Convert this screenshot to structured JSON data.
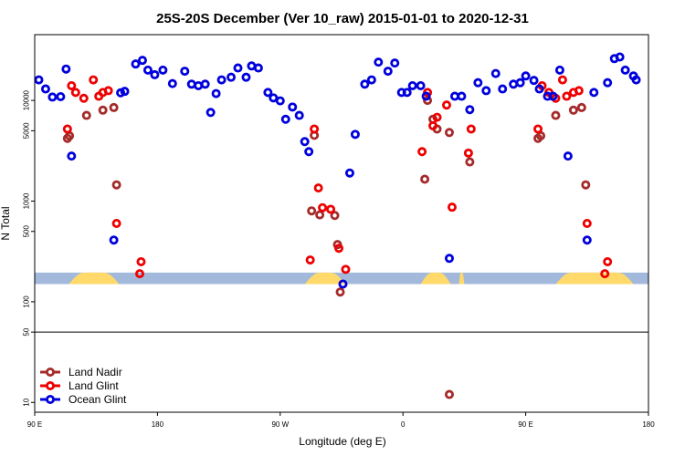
{
  "chart_data": {
    "type": "scatter",
    "title": "25S-20S December (Ver 10_raw)   2015-01-01 to 2020-12-31",
    "xlabel": "Longitude (deg E)",
    "ylabel": "N Total",
    "y_scale": "log",
    "xlim": [
      90,
      540
    ],
    "ylim": [
      8,
      45000
    ],
    "x_ticks": [
      {
        "value": 90,
        "label": "90 E"
      },
      {
        "value": 180,
        "label": "180"
      },
      {
        "value": 270,
        "label": "90 W"
      },
      {
        "value": 360,
        "label": "0"
      },
      {
        "value": 450,
        "label": "90 E"
      },
      {
        "value": 540,
        "label": "180"
      }
    ],
    "y_ticks": [
      {
        "value": 10,
        "label": "10"
      },
      {
        "value": 50,
        "label": "50"
      },
      {
        "value": 100,
        "label": "100"
      },
      {
        "value": 500,
        "label": "500"
      },
      {
        "value": 1000,
        "label": "1000"
      },
      {
        "value": 5000,
        "label": "5000"
      },
      {
        "value": 10000,
        "label": "10000"
      }
    ],
    "reference_line_y": 50,
    "land_band": {
      "y_range": [
        150,
        195
      ],
      "ocean_color": "#a3b9db",
      "land_color": "#ffd96a",
      "land_segments": [
        [
          115,
          152
        ],
        [
          288,
          318
        ],
        [
          373,
          395
        ],
        [
          401,
          405
        ],
        [
          472,
          529
        ]
      ]
    },
    "legend": {
      "position": "bottom-left"
    },
    "series": [
      {
        "name": "Land Nadir",
        "color": "#a52a2a",
        "points": [
          [
            114,
            4200
          ],
          [
            115.5,
            4450
          ],
          [
            128,
            7100
          ],
          [
            140,
            8000
          ],
          [
            148,
            8500
          ],
          [
            150,
            1450
          ],
          [
            293,
            800
          ],
          [
            295,
            4500
          ],
          [
            299,
            730
          ],
          [
            310,
            720
          ],
          [
            312,
            370
          ],
          [
            314,
            125
          ],
          [
            376,
            1650
          ],
          [
            378,
            10000
          ],
          [
            382,
            6500
          ],
          [
            385,
            5200
          ],
          [
            394,
            4800
          ],
          [
            394,
            12
          ],
          [
            409,
            2450
          ],
          [
            459,
            4200
          ],
          [
            461,
            4450
          ],
          [
            472,
            7100
          ],
          [
            485,
            8000
          ],
          [
            491,
            8500
          ],
          [
            494,
            1450
          ]
        ]
      },
      {
        "name": "Land Glint",
        "color": "#ee0000",
        "points": [
          [
            114,
            5200
          ],
          [
            117,
            14000
          ],
          [
            120,
            12000
          ],
          [
            126,
            10500
          ],
          [
            133,
            16000
          ],
          [
            137,
            11000
          ],
          [
            140,
            12000
          ],
          [
            144,
            12500
          ],
          [
            150,
            600
          ],
          [
            167,
            190
          ],
          [
            168,
            250
          ],
          [
            292,
            260
          ],
          [
            295,
            5200
          ],
          [
            298,
            1350
          ],
          [
            301,
            860
          ],
          [
            307,
            830
          ],
          [
            313,
            340
          ],
          [
            318,
            210
          ],
          [
            374,
            3100
          ],
          [
            378,
            12000
          ],
          [
            382,
            5600
          ],
          [
            385,
            6800
          ],
          [
            392,
            9000
          ],
          [
            396,
            870
          ],
          [
            408,
            3000
          ],
          [
            410,
            5200
          ],
          [
            459,
            5200
          ],
          [
            462,
            14000
          ],
          [
            467,
            12000
          ],
          [
            472,
            10500
          ],
          [
            477,
            16000
          ],
          [
            480,
            11000
          ],
          [
            485,
            12000
          ],
          [
            489,
            12500
          ],
          [
            495,
            600
          ],
          [
            508,
            190
          ],
          [
            510,
            250
          ]
        ]
      },
      {
        "name": "Ocean Glint",
        "color": "#0000dd",
        "points": [
          [
            93,
            16000
          ],
          [
            98,
            13000
          ],
          [
            103,
            10800
          ],
          [
            109,
            10900
          ],
          [
            113,
            20500
          ],
          [
            117,
            2800
          ],
          [
            148,
            410
          ],
          [
            153,
            11900
          ],
          [
            156,
            12300
          ],
          [
            164,
            23000
          ],
          [
            169,
            25000
          ],
          [
            173,
            20000
          ],
          [
            178,
            18000
          ],
          [
            184,
            20000
          ],
          [
            191,
            14700
          ],
          [
            200,
            19500
          ],
          [
            205,
            14500
          ],
          [
            210,
            14000
          ],
          [
            215,
            14500
          ],
          [
            219,
            7600
          ],
          [
            223,
            11700
          ],
          [
            227,
            16000
          ],
          [
            234,
            17000
          ],
          [
            239,
            21000
          ],
          [
            245,
            17000
          ],
          [
            249,
            22000
          ],
          [
            254,
            21000
          ],
          [
            261,
            12000
          ],
          [
            265,
            10600
          ],
          [
            270,
            9900
          ],
          [
            274,
            6500
          ],
          [
            279,
            8600
          ],
          [
            284,
            7100
          ],
          [
            288,
            3900
          ],
          [
            291,
            3100
          ],
          [
            316,
            150
          ],
          [
            321,
            1900
          ],
          [
            325,
            4600
          ],
          [
            332,
            14500
          ],
          [
            337,
            16000
          ],
          [
            342,
            24000
          ],
          [
            349,
            19500
          ],
          [
            354,
            23500
          ],
          [
            359,
            12000
          ],
          [
            363,
            12000
          ],
          [
            367,
            14000
          ],
          [
            373,
            14000
          ],
          [
            377,
            11000
          ],
          [
            394,
            270
          ],
          [
            398,
            11000
          ],
          [
            403,
            11000
          ],
          [
            409,
            8100
          ],
          [
            415,
            15000
          ],
          [
            421,
            12500
          ],
          [
            428,
            18500
          ],
          [
            433,
            13000
          ],
          [
            441,
            14500
          ],
          [
            446,
            15000
          ],
          [
            450,
            17500
          ],
          [
            456,
            15800
          ],
          [
            460,
            13000
          ],
          [
            466,
            11000
          ],
          [
            470,
            11000
          ],
          [
            475,
            20000
          ],
          [
            481,
            2800
          ],
          [
            495,
            410
          ],
          [
            500,
            12000
          ],
          [
            510,
            15000
          ],
          [
            515,
            26000
          ],
          [
            519,
            27000
          ],
          [
            523,
            20000
          ],
          [
            529,
            17500
          ],
          [
            531,
            16000
          ]
        ]
      }
    ]
  }
}
